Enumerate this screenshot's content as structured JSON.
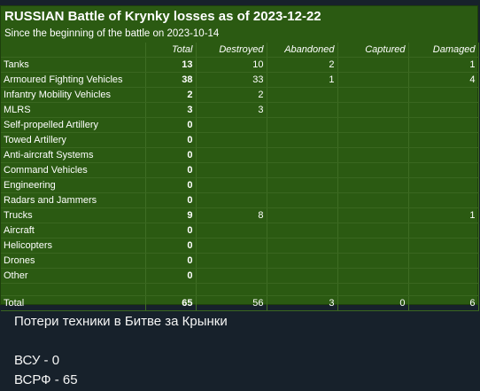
{
  "title": "RUSSIAN Battle of Krynky losses as of 2023-12-22",
  "subtitle": "Since the beginning of the battle on 2023-10-14",
  "columns": [
    "Total",
    "Destroyed",
    "Abandoned",
    "Captured",
    "Damaged"
  ],
  "rows": [
    {
      "name": "Tanks",
      "total": "13",
      "destroyed": "10",
      "abandoned": "2",
      "captured": "",
      "damaged": "1"
    },
    {
      "name": "Armoured Fighting Vehicles",
      "total": "38",
      "destroyed": "33",
      "abandoned": "1",
      "captured": "",
      "damaged": "4"
    },
    {
      "name": "Infantry Mobility Vehicles",
      "total": "2",
      "destroyed": "2",
      "abandoned": "",
      "captured": "",
      "damaged": ""
    },
    {
      "name": "MLRS",
      "total": "3",
      "destroyed": "3",
      "abandoned": "",
      "captured": "",
      "damaged": ""
    },
    {
      "name": "Self-propelled Artillery",
      "total": "0",
      "destroyed": "",
      "abandoned": "",
      "captured": "",
      "damaged": ""
    },
    {
      "name": "Towed Artillery",
      "total": "0",
      "destroyed": "",
      "abandoned": "",
      "captured": "",
      "damaged": ""
    },
    {
      "name": "Anti-aircraft Systems",
      "total": "0",
      "destroyed": "",
      "abandoned": "",
      "captured": "",
      "damaged": ""
    },
    {
      "name": "Command Vehicles",
      "total": "0",
      "destroyed": "",
      "abandoned": "",
      "captured": "",
      "damaged": ""
    },
    {
      "name": "Engineering",
      "total": "0",
      "destroyed": "",
      "abandoned": "",
      "captured": "",
      "damaged": ""
    },
    {
      "name": "Radars and Jammers",
      "total": "0",
      "destroyed": "",
      "abandoned": "",
      "captured": "",
      "damaged": ""
    },
    {
      "name": "Trucks",
      "total": "9",
      "destroyed": "8",
      "abandoned": "",
      "captured": "",
      "damaged": "1"
    },
    {
      "name": "Aircraft",
      "total": "0",
      "destroyed": "",
      "abandoned": "",
      "captured": "",
      "damaged": ""
    },
    {
      "name": "Helicopters",
      "total": "0",
      "destroyed": "",
      "abandoned": "",
      "captured": "",
      "damaged": ""
    },
    {
      "name": "Drones",
      "total": "0",
      "destroyed": "",
      "abandoned": "",
      "captured": "",
      "damaged": ""
    },
    {
      "name": "Other",
      "total": "0",
      "destroyed": "",
      "abandoned": "",
      "captured": "",
      "damaged": ""
    }
  ],
  "totals": {
    "name": "Total",
    "total": "65",
    "destroyed": "56",
    "abandoned": "3",
    "captured": "0",
    "damaged": "6"
  },
  "caption": {
    "line1": "Потери техники в Битве за Крынки",
    "line2": "ВСУ - 0",
    "line3": "ВСРФ - 65"
  },
  "colors": {
    "background": "#17212b",
    "table_fill": "#2b5a12",
    "text": "#ffffff"
  }
}
